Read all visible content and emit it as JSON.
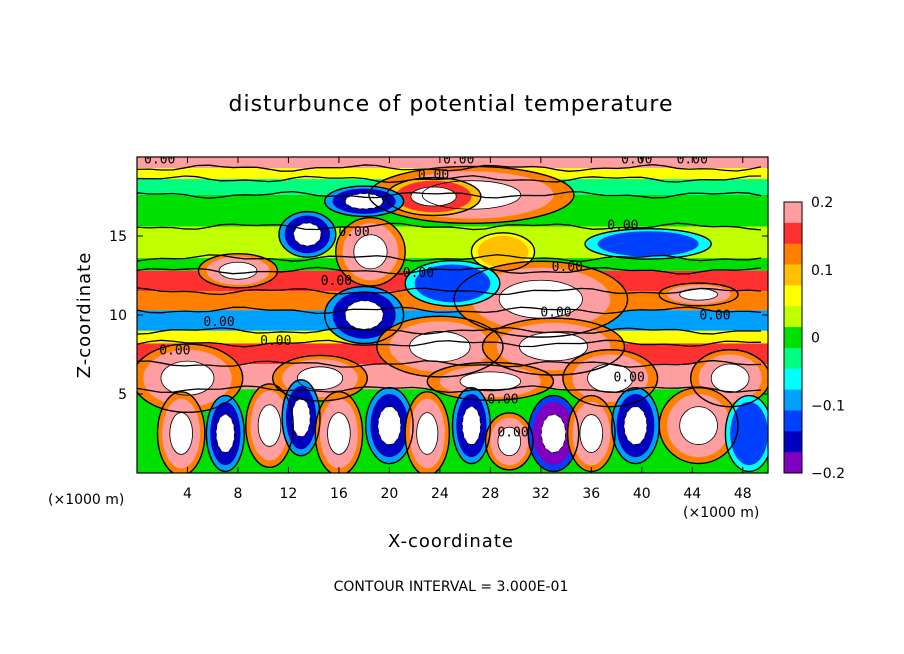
{
  "chart_data": {
    "type": "heatmap",
    "title": "disturbunce of potential temperature",
    "xlabel": "X-coordinate",
    "ylabel": "Z-coordinate",
    "x_unit_label": "(×1000 m)",
    "y_unit_label": "(×1000 m)",
    "xlim": [
      0,
      50
    ],
    "ylim": [
      0,
      20
    ],
    "x_ticks": [
      4,
      8,
      12,
      16,
      20,
      24,
      28,
      32,
      36,
      40,
      44,
      48
    ],
    "y_ticks": [
      5,
      10,
      15
    ],
    "colorbar": {
      "range": [
        -0.2,
        0.2
      ],
      "ticks": [
        0.2,
        0.1,
        0,
        -0.1,
        -0.2
      ],
      "tick_labels": [
        "0.2",
        "0.1",
        "0",
        "−0.1",
        "−0.2"
      ],
      "colors": [
        "#ff9ea0",
        "#ff3030",
        "#ff8000",
        "#ffc000",
        "#ffff00",
        "#c0ff00",
        "#00e000",
        "#00ff80",
        "#00ffff",
        "#00a0ff",
        "#0040ff",
        "#0000c0",
        "#8000c0"
      ]
    },
    "contour_interval_note": "CONTOUR INTERVAL = 3.000E-01",
    "contour_label": "0.00",
    "contour_label_positions": [
      [
        1.8,
        19.6
      ],
      [
        25.5,
        19.6
      ],
      [
        23.5,
        18.6
      ],
      [
        39.6,
        19.6
      ],
      [
        44.0,
        19.6
      ],
      [
        38.5,
        15.4
      ],
      [
        17.2,
        15.0
      ],
      [
        22.3,
        12.4
      ],
      [
        15.8,
        11.9
      ],
      [
        34.1,
        12.8
      ],
      [
        6.5,
        9.3
      ],
      [
        33.2,
        9.9
      ],
      [
        45.8,
        9.7
      ],
      [
        11.0,
        8.1
      ],
      [
        39.0,
        5.8
      ],
      [
        29.0,
        4.4
      ],
      [
        29.8,
        2.3
      ],
      [
        3.0,
        7.5
      ]
    ],
    "bands": [
      {
        "z0": 19.3,
        "z1": 20.0,
        "value": 0.2
      },
      {
        "z0": 18.6,
        "z1": 19.3,
        "value": 0.05
      },
      {
        "z0": 17.6,
        "z1": 18.6,
        "value": -0.02
      },
      {
        "z0": 15.6,
        "z1": 17.6,
        "value": 0.0
      },
      {
        "z0": 13.6,
        "z1": 15.6,
        "value": 0.02
      },
      {
        "z0": 12.8,
        "z1": 13.6,
        "value": 0.0
      },
      {
        "z0": 11.5,
        "z1": 12.8,
        "value": 0.15
      },
      {
        "z0": 10.3,
        "z1": 11.5,
        "value": 0.12
      },
      {
        "z0": 9.0,
        "z1": 10.3,
        "value": -0.1
      },
      {
        "z0": 8.2,
        "z1": 9.0,
        "value": 0.05
      },
      {
        "z0": 6.9,
        "z1": 8.2,
        "value": 0.16
      },
      {
        "z0": 5.3,
        "z1": 6.9,
        "value": 0.2
      },
      {
        "z0": 0.0,
        "z1": 5.3,
        "value": 0.0
      }
    ],
    "features": [
      {
        "x": 26.5,
        "z": 17.6,
        "rx": 6.5,
        "rz": 1.5,
        "value": 0.2
      },
      {
        "x": 23.5,
        "z": 17.5,
        "rx": 3.0,
        "rz": 1.0,
        "value": 0.15
      },
      {
        "x": 18.0,
        "z": 17.2,
        "rx": 2.5,
        "rz": 0.8,
        "value": -0.15
      },
      {
        "x": 13.5,
        "z": 15.1,
        "rx": 1.8,
        "rz": 1.2,
        "value": -0.15
      },
      {
        "x": 18.5,
        "z": 14.0,
        "rx": 2.2,
        "rz": 1.8,
        "value": 0.2
      },
      {
        "x": 29.0,
        "z": 14.0,
        "rx": 2.0,
        "rz": 1.0,
        "value": 0.1
      },
      {
        "x": 40.5,
        "z": 14.5,
        "rx": 4.0,
        "rz": 0.8,
        "value": -0.12
      },
      {
        "x": 8.0,
        "z": 12.8,
        "rx": 2.5,
        "rz": 0.9,
        "value": 0.2
      },
      {
        "x": 32.0,
        "z": 11.0,
        "rx": 5.5,
        "rz": 2.0,
        "value": 0.2
      },
      {
        "x": 25.0,
        "z": 12.0,
        "rx": 3.0,
        "rz": 1.2,
        "value": -0.12
      },
      {
        "x": 44.5,
        "z": 11.3,
        "rx": 2.5,
        "rz": 0.6,
        "value": 0.2
      },
      {
        "x": 18.0,
        "z": 10.0,
        "rx": 2.5,
        "rz": 1.5,
        "value": -0.15
      },
      {
        "x": 24.0,
        "z": 8.0,
        "rx": 4.0,
        "rz": 1.6,
        "value": 0.2
      },
      {
        "x": 33.0,
        "z": 8.0,
        "rx": 4.5,
        "rz": 1.5,
        "value": 0.2
      },
      {
        "x": 4.0,
        "z": 6.0,
        "rx": 3.5,
        "rz": 1.8,
        "value": 0.2
      },
      {
        "x": 14.5,
        "z": 6.0,
        "rx": 3.0,
        "rz": 1.2,
        "value": 0.2
      },
      {
        "x": 28.0,
        "z": 5.8,
        "rx": 4.0,
        "rz": 1.0,
        "value": 0.2
      },
      {
        "x": 37.5,
        "z": 6.0,
        "rx": 3.0,
        "rz": 1.5,
        "value": 0.2
      },
      {
        "x": 47.0,
        "z": 6.0,
        "rx": 2.5,
        "rz": 1.5,
        "value": 0.2
      },
      {
        "x": 3.5,
        "z": 2.5,
        "rx": 1.5,
        "rz": 2.2,
        "value": 0.2
      },
      {
        "x": 7.0,
        "z": 2.5,
        "rx": 1.2,
        "rz": 2.0,
        "value": -0.15
      },
      {
        "x": 10.5,
        "z": 3.0,
        "rx": 1.5,
        "rz": 2.2,
        "value": 0.2
      },
      {
        "x": 13.0,
        "z": 3.5,
        "rx": 1.2,
        "rz": 2.0,
        "value": -0.15
      },
      {
        "x": 16.0,
        "z": 2.5,
        "rx": 1.5,
        "rz": 2.2,
        "value": 0.2
      },
      {
        "x": 20.0,
        "z": 3.0,
        "rx": 1.5,
        "rz": 2.0,
        "value": -0.15
      },
      {
        "x": 23.0,
        "z": 2.5,
        "rx": 1.4,
        "rz": 2.2,
        "value": 0.2
      },
      {
        "x": 26.5,
        "z": 3.0,
        "rx": 1.2,
        "rz": 2.0,
        "value": -0.15
      },
      {
        "x": 29.5,
        "z": 2.0,
        "rx": 1.5,
        "rz": 1.5,
        "value": 0.2
      },
      {
        "x": 33.0,
        "z": 2.5,
        "rx": 1.6,
        "rz": 2.0,
        "value": -0.18
      },
      {
        "x": 36.0,
        "z": 2.5,
        "rx": 1.5,
        "rz": 2.0,
        "value": 0.2
      },
      {
        "x": 39.5,
        "z": 3.0,
        "rx": 1.5,
        "rz": 2.0,
        "value": -0.15
      },
      {
        "x": 44.5,
        "z": 3.0,
        "rx": 2.5,
        "rz": 2.0,
        "value": 0.2
      },
      {
        "x": 48.5,
        "z": 2.5,
        "rx": 1.5,
        "rz": 2.0,
        "value": -0.12
      }
    ]
  }
}
